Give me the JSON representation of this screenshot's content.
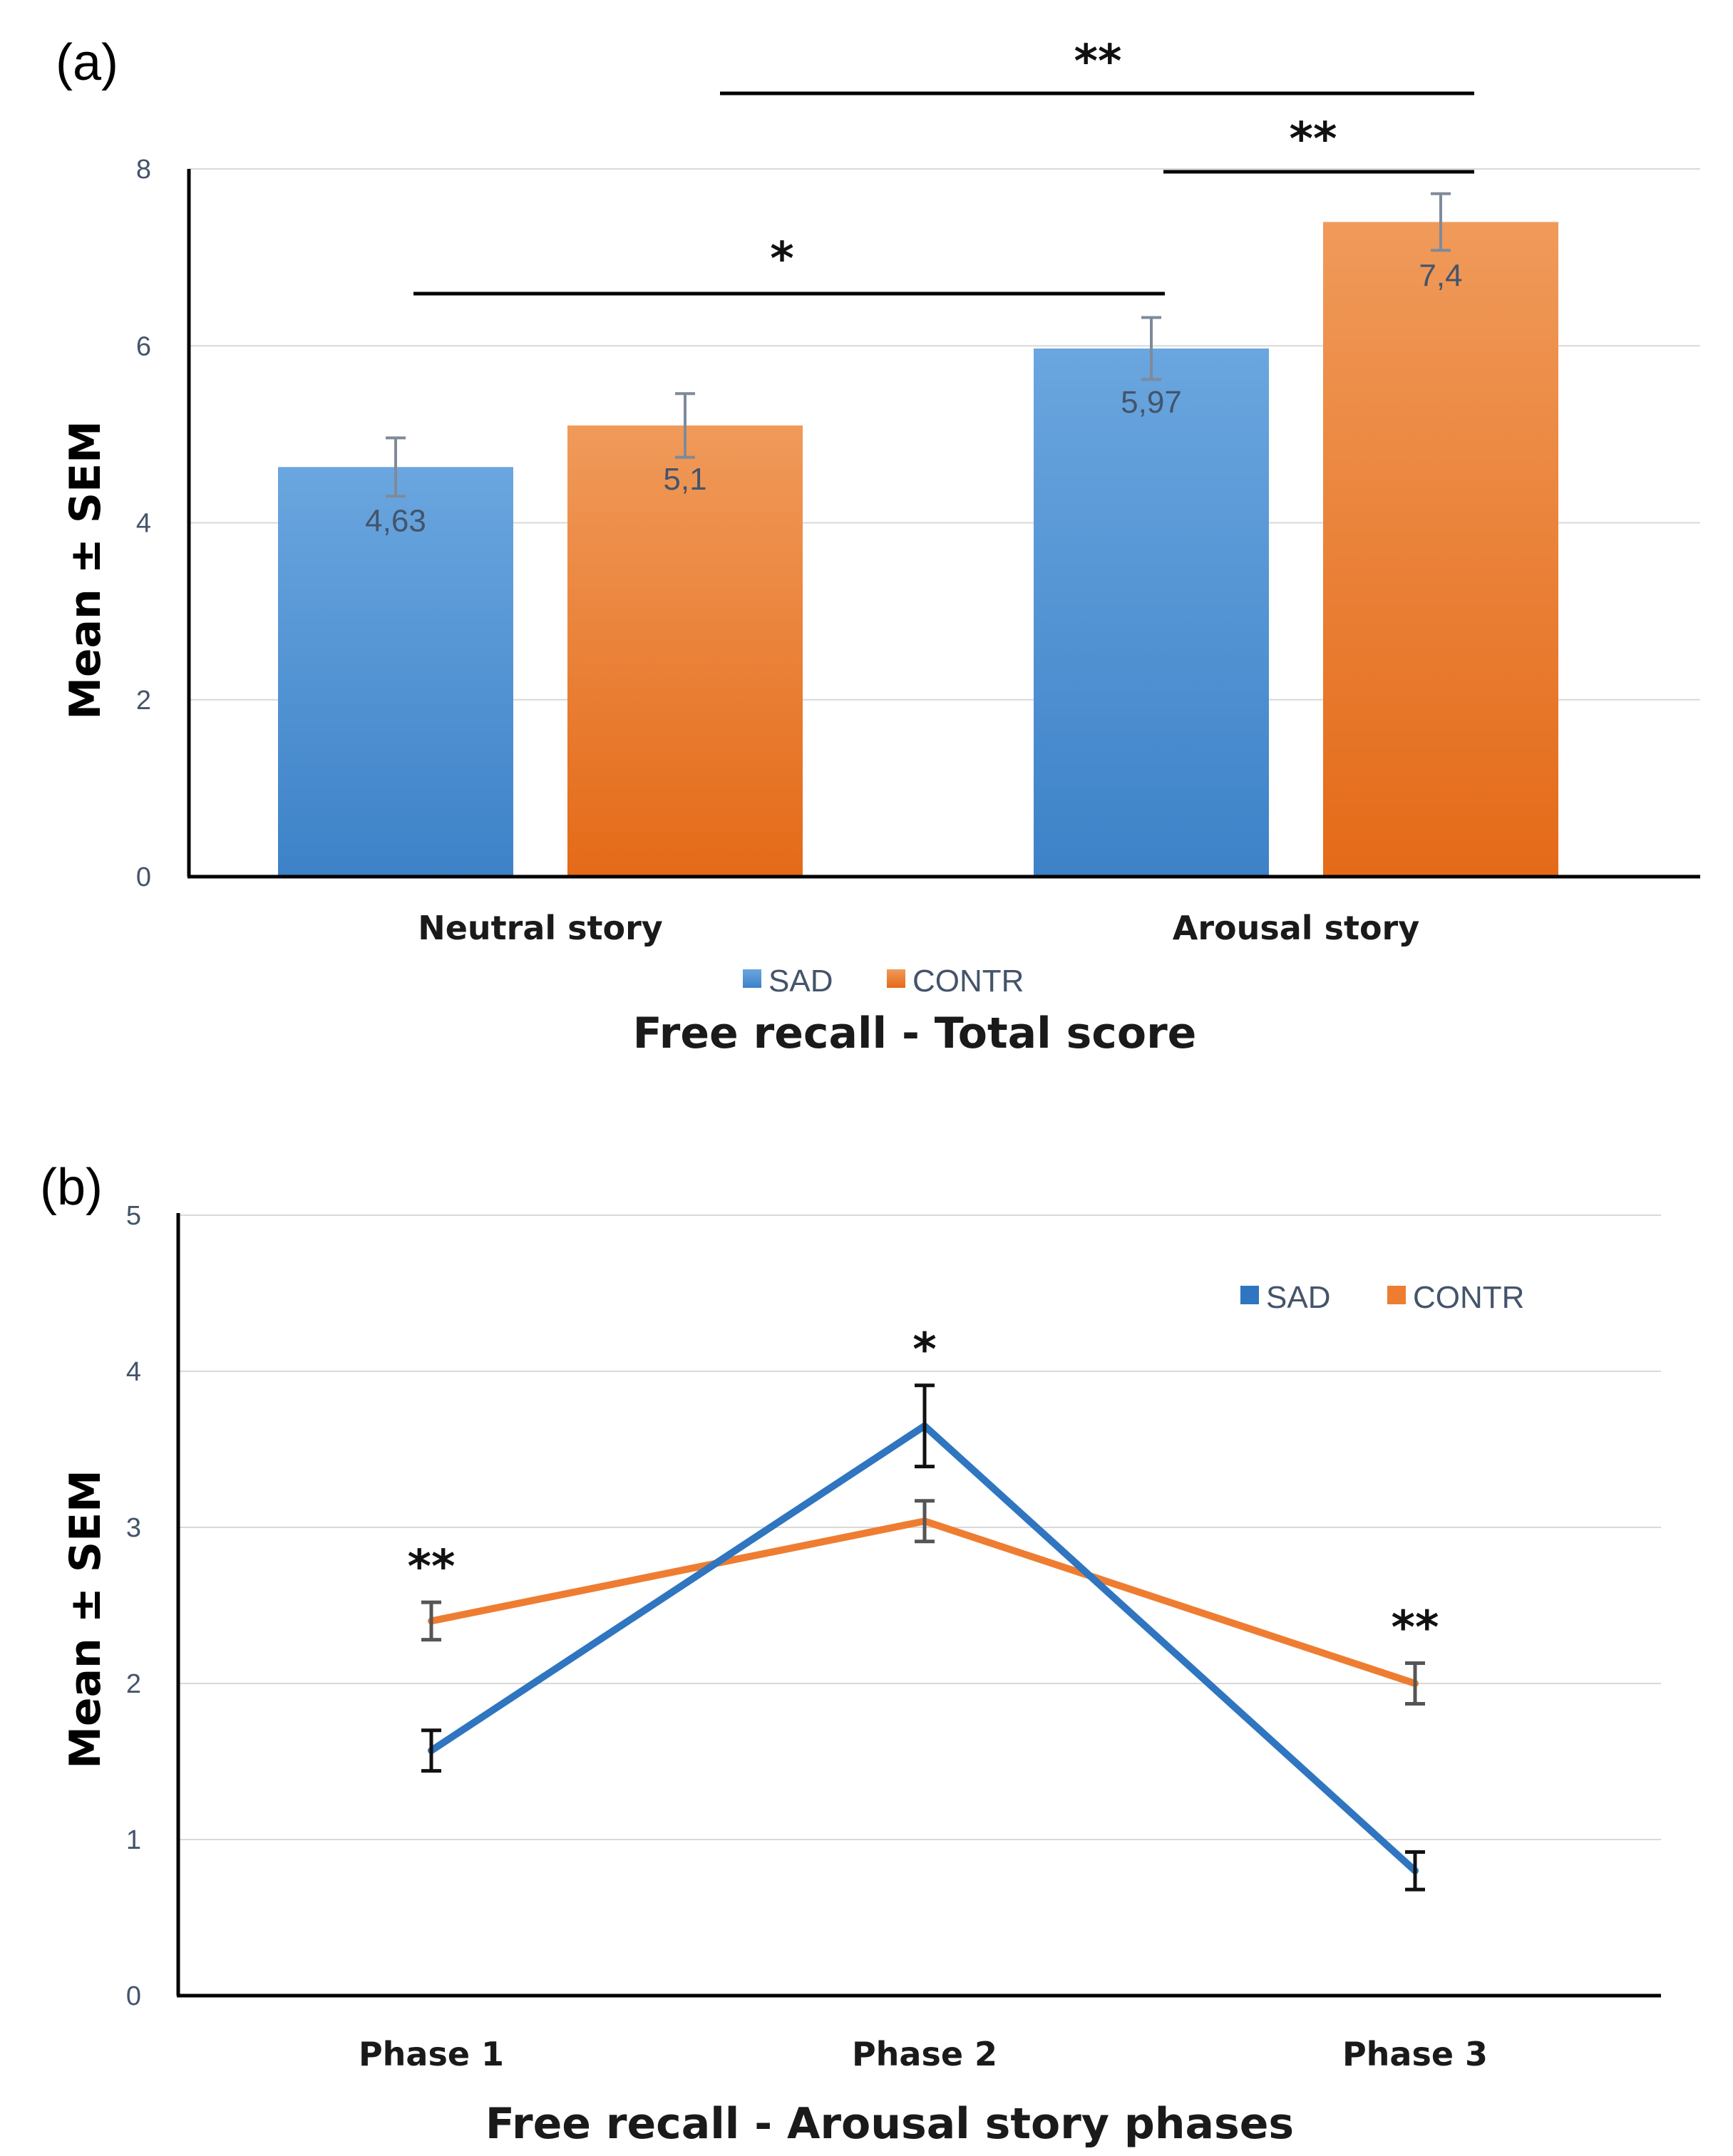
{
  "colors": {
    "sad": "#4a8fd4",
    "contr": "#ef7c2c",
    "sad_line": "#2f75c0",
    "contr_line": "#ee7d31"
  },
  "chart_data": [
    {
      "type": "bar",
      "panel_label": "(a)",
      "title": "Free recall - Total score",
      "ylabel": "Mean ± SEM",
      "xlabel": "",
      "ylim": [
        0,
        8
      ],
      "yticks": [
        "0",
        "2",
        "4",
        "6",
        "8"
      ],
      "categories": [
        "Neutral story",
        "Arousal story"
      ],
      "series": [
        {
          "name": "SAD",
          "values": [
            4.63,
            5.97
          ],
          "errors": [
            0.33,
            0.35
          ],
          "labels": [
            "4,63",
            "5,97"
          ]
        },
        {
          "name": "CONTR",
          "values": [
            5.1,
            7.4
          ],
          "errors": [
            0.36,
            0.32
          ],
          "labels": [
            "5,1",
            "7,4"
          ]
        }
      ],
      "legend": "bottom-center",
      "grid": true,
      "significance": [
        {
          "label": "*",
          "from": "Neutral story SAD",
          "to": "Arousal story SAD"
        },
        {
          "label": "**",
          "from": "Arousal story SAD",
          "to": "Arousal story CONTR"
        },
        {
          "label": "**",
          "from": "Neutral story CONTR",
          "to": "Arousal story CONTR"
        }
      ]
    },
    {
      "type": "line",
      "panel_label": "(b)",
      "title": "Free recall - Arousal story phases",
      "ylabel": "Mean ± SEM",
      "xlabel": "",
      "ylim": [
        0,
        5
      ],
      "yticks": [
        "0",
        "1",
        "2",
        "3",
        "4",
        "5"
      ],
      "categories": [
        "Phase 1",
        "Phase 2",
        "Phase 3"
      ],
      "series": [
        {
          "name": "SAD",
          "values": [
            1.57,
            3.65,
            0.8
          ],
          "errors": [
            0.13,
            0.26,
            0.12
          ]
        },
        {
          "name": "CONTR",
          "values": [
            2.4,
            3.04,
            2.0
          ],
          "errors": [
            0.12,
            0.13,
            0.13
          ]
        }
      ],
      "legend": "top-right",
      "grid": true,
      "significance": [
        {
          "label": "**",
          "at": "Phase 1"
        },
        {
          "label": "*",
          "at": "Phase 2"
        },
        {
          "label": "**",
          "at": "Phase 3"
        }
      ]
    }
  ]
}
